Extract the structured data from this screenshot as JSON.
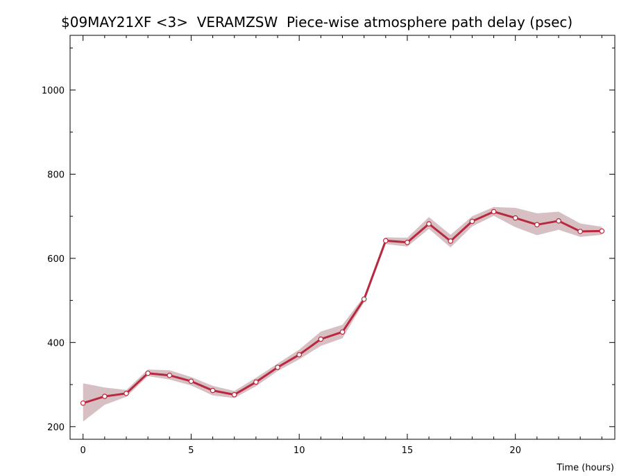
{
  "chart_data": {
    "type": "line",
    "title": "$09MAY21XF <3>  VERAMZSW  Piece-wise atmosphere path delay (psec)",
    "xlabel": "Time (hours)",
    "ylabel": "",
    "xlim": [
      -0.6,
      24.6
    ],
    "ylim": [
      170,
      1130
    ],
    "x_ticks": [
      0,
      5,
      10,
      15,
      20
    ],
    "y_ticks": [
      200,
      400,
      600,
      800,
      1000
    ],
    "grid": false,
    "line_color": "#b8283e",
    "band_color": "#d7c0c3",
    "series": [
      {
        "x": [
          0,
          1,
          2,
          3,
          4,
          5,
          6,
          7,
          8,
          9,
          10,
          11,
          12,
          13,
          14,
          15,
          16,
          17,
          18,
          19,
          20,
          21,
          22,
          23,
          24
        ],
        "y": [
          256,
          272,
          279,
          327,
          322,
          308,
          286,
          276,
          306,
          341,
          371,
          408,
          425,
          503,
          642,
          638,
          682,
          641,
          688,
          711,
          696,
          680,
          689,
          664,
          665
        ],
        "y_lower": [
          212,
          252,
          271,
          320,
          312,
          298,
          274,
          268,
          296,
          332,
          360,
          392,
          410,
          496,
          634,
          628,
          670,
          626,
          676,
          701,
          674,
          655,
          668,
          651,
          656
        ],
        "y_upper": [
          303,
          293,
          287,
          336,
          334,
          318,
          297,
          285,
          316,
          350,
          383,
          426,
          442,
          510,
          650,
          649,
          698,
          656,
          700,
          722,
          720,
          707,
          711,
          683,
          675
        ]
      }
    ]
  }
}
